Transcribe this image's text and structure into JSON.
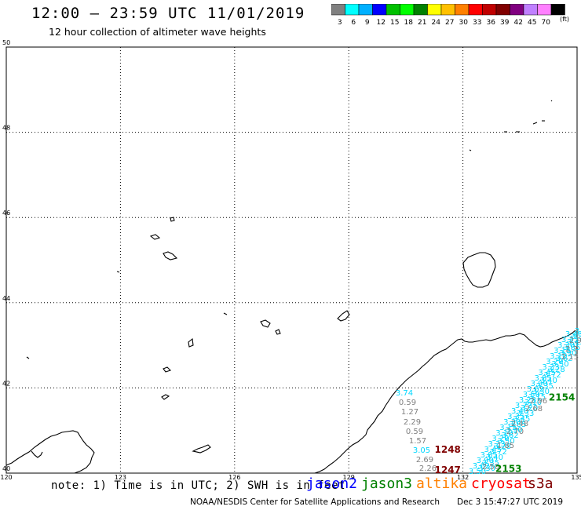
{
  "header": {
    "title": "12:00 — 23:59 UTC 11/01/2019",
    "subtitle": "12 hour collection of altimeter wave heights"
  },
  "colorbar": {
    "colors": [
      "#808080",
      "#00ffff",
      "#00b0ff",
      "#0000ff",
      "#00c000",
      "#00ff00",
      "#008000",
      "#ffff00",
      "#ffc000",
      "#ff8000",
      "#ff0000",
      "#c00000",
      "#800000",
      "#800080",
      "#c080ff",
      "#ff80ff",
      "#000000"
    ],
    "labels": [
      "3",
      "6",
      "9",
      "12",
      "15",
      "18",
      "21",
      "24",
      "27",
      "30",
      "33",
      "36",
      "39",
      "42",
      "45",
      "70"
    ],
    "units": "(ft)"
  },
  "map": {
    "lon_ticks": [
      "120",
      "123",
      "126",
      "129",
      "132",
      "135"
    ],
    "lat_ticks": [
      "50",
      "48",
      "46",
      "44",
      "42",
      "40"
    ],
    "lon_range": [
      120,
      135
    ],
    "lat_range": [
      40,
      50
    ],
    "track_labels": [
      {
        "text": "1248",
        "color": "#800000",
        "lon": 131.6,
        "lat": 40.48
      },
      {
        "text": "1247",
        "color": "#800000",
        "lon": 131.6,
        "lat": 40.0
      },
      {
        "text": "2153",
        "color": "#008000",
        "lon": 133.2,
        "lat": 40.03
      },
      {
        "text": "2154",
        "color": "#008000",
        "lon": 134.6,
        "lat": 41.7
      }
    ],
    "wave_values_west": [
      {
        "text": "3.74",
        "color": "#00d8ff"
      },
      {
        "text": "0.59",
        "color": "#808080"
      },
      {
        "text": "1.27",
        "color": "#808080"
      },
      {
        "text": "2.29",
        "color": "#808080"
      },
      {
        "text": "0.59",
        "color": "#808080"
      },
      {
        "text": "1.57",
        "color": "#808080"
      },
      {
        "text": "3.05",
        "color": "#00d8ff"
      },
      {
        "text": "2.69",
        "color": "#808080"
      },
      {
        "text": "2.26",
        "color": "#808080"
      }
    ],
    "wave_values_east_gray": [
      "2.96",
      "2.68",
      "2.48",
      "2.70",
      "1.85",
      "2.50"
    ],
    "wave_values_east_cyan": [
      "3.30",
      "3.35",
      "3.40",
      "3.72",
      "3.28",
      "3.50",
      "3.62",
      "3.90",
      "3.85",
      "3.45",
      "3.33",
      "3.20",
      "3.10",
      "3.15"
    ]
  },
  "footer": {
    "note": "note: 1) Time is in UTC; 2) SWH is in feet",
    "satellites": [
      {
        "name": "jason2",
        "color": "#0000ff"
      },
      {
        "name": "jason3",
        "color": "#008000"
      },
      {
        "name": "altika",
        "color": "#ff8000"
      },
      {
        "name": "cryosat",
        "color": "#ff0000"
      },
      {
        "name": "s3a",
        "color": "#800000"
      }
    ],
    "credit": "NOAA/NESDIS Center for Satellite Applications and Research",
    "timestamp": "Dec  3 15:47:27 UTC 2019"
  }
}
